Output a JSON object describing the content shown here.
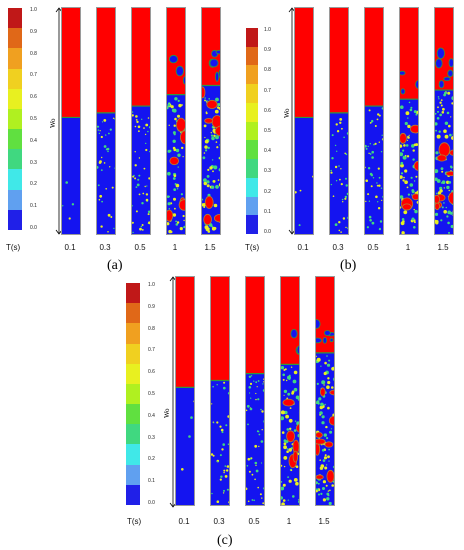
{
  "colorbar": {
    "ticks": [
      "1.0",
      "0.9",
      "0.8",
      "0.7",
      "0.6",
      "0.5",
      "0.4",
      "0.3",
      "0.2",
      "0.1",
      "0.0"
    ],
    "colors": [
      "#c01818",
      "#e06818",
      "#f0a020",
      "#f0d020",
      "#e8f020",
      "#b0f020",
      "#60e040",
      "#40d880",
      "#40e8e8",
      "#60a0f0",
      "#2020e8"
    ]
  },
  "time_axis_label": "T(s)",
  "time_values": [
    "0.1",
    "0.3",
    "0.5",
    "1",
    "1.5"
  ],
  "height_label": "Wo",
  "phase_colors": {
    "air": "#ff0000",
    "water": "#1414f0",
    "interface": "#2e9a40"
  },
  "panels": [
    {
      "label": "(a)",
      "water_levels": [
        0.52,
        0.54,
        0.57,
        0.62,
        0.66
      ]
    },
    {
      "label": "(b)",
      "water_levels": [
        0.52,
        0.54,
        0.57,
        0.6,
        0.64
      ]
    },
    {
      "label": "(c)",
      "water_levels": [
        0.52,
        0.55,
        0.58,
        0.62,
        0.67
      ]
    }
  ]
}
